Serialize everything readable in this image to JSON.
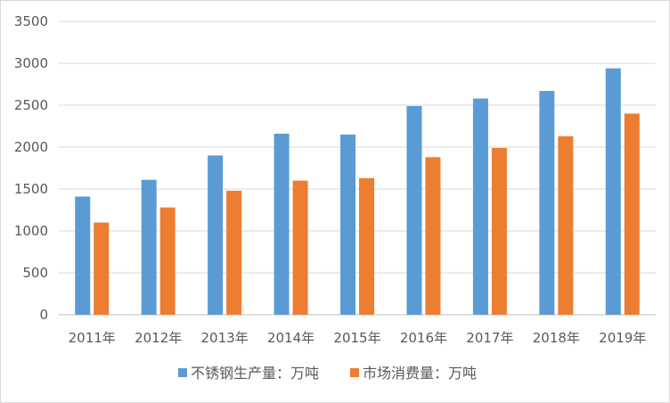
{
  "chart_data": {
    "type": "bar",
    "categories": [
      "2011年",
      "2012年",
      "2013年",
      "2014年",
      "2015年",
      "2016年",
      "2017年",
      "2018年",
      "2019年"
    ],
    "series": [
      {
        "name": "不锈钢生产量：万吨",
        "color": "#5b9bd5",
        "values": [
          1410,
          1610,
          1900,
          2160,
          2150,
          2490,
          2580,
          2670,
          2940
        ]
      },
      {
        "name": "市场消费量：万吨",
        "color": "#ed7d31",
        "values": [
          1100,
          1280,
          1480,
          1600,
          1630,
          1880,
          1990,
          2130,
          2400
        ]
      }
    ],
    "title": "",
    "xlabel": "",
    "ylabel": "",
    "ylim": [
      0,
      3500
    ],
    "yticks": [
      "0",
      "500",
      "1000",
      "1500",
      "2000",
      "2500",
      "3000",
      "3500"
    ],
    "grid": true,
    "legend_position": "bottom"
  }
}
